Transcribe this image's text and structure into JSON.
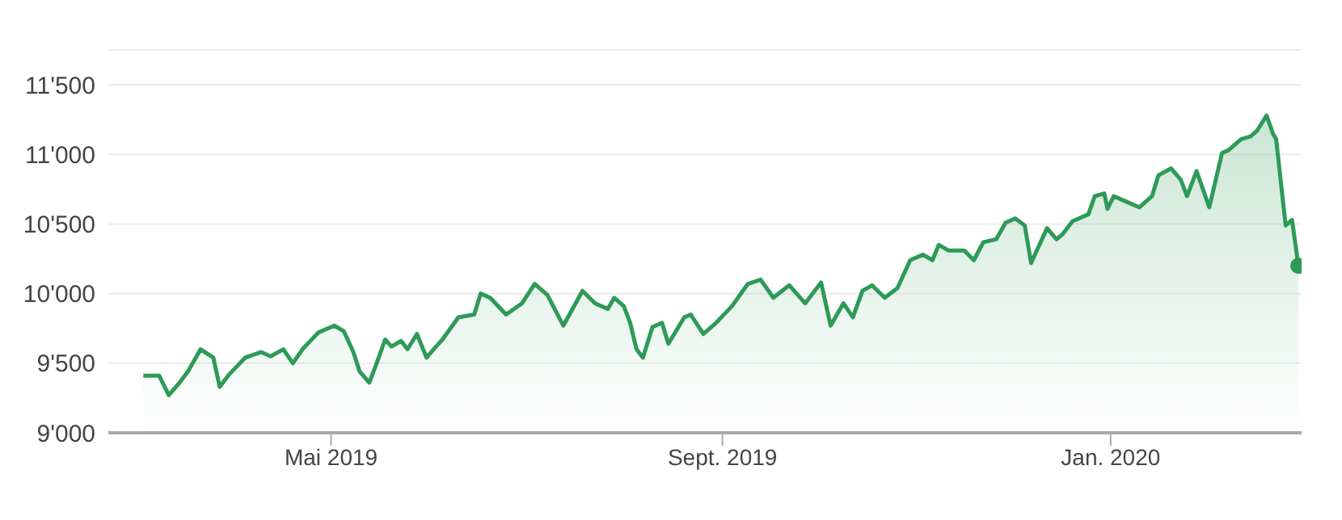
{
  "chart_data": {
    "type": "area",
    "x": [
      "2019-03-03",
      "2019-03-08",
      "2019-03-11",
      "2019-03-14",
      "2019-03-17",
      "2019-03-21",
      "2019-03-25",
      "2019-03-27",
      "2019-03-30",
      "2019-04-04",
      "2019-04-09",
      "2019-04-12",
      "2019-04-16",
      "2019-04-19",
      "2019-04-22",
      "2019-04-27",
      "2019-05-02",
      "2019-05-05",
      "2019-05-08",
      "2019-05-10",
      "2019-05-13",
      "2019-05-15",
      "2019-05-18",
      "2019-05-20",
      "2019-05-23",
      "2019-05-25",
      "2019-05-28",
      "2019-05-31",
      "2019-06-03",
      "2019-06-05",
      "2019-06-10",
      "2019-06-15",
      "2019-06-17",
      "2019-06-20",
      "2019-06-25",
      "2019-06-30",
      "2019-07-04",
      "2019-07-08",
      "2019-07-13",
      "2019-07-19",
      "2019-07-23",
      "2019-07-27",
      "2019-07-29",
      "2019-08-01",
      "2019-08-03",
      "2019-08-05",
      "2019-08-07",
      "2019-08-10",
      "2019-08-13",
      "2019-08-15",
      "2019-08-20",
      "2019-08-22",
      "2019-08-26",
      "2019-08-30",
      "2019-09-04",
      "2019-09-09",
      "2019-09-13",
      "2019-09-17",
      "2019-09-22",
      "2019-09-27",
      "2019-10-02",
      "2019-10-05",
      "2019-10-09",
      "2019-10-12",
      "2019-10-15",
      "2019-10-18",
      "2019-10-22",
      "2019-10-26",
      "2019-10-30",
      "2019-11-03",
      "2019-11-06",
      "2019-11-08",
      "2019-11-11",
      "2019-11-16",
      "2019-11-19",
      "2019-11-22",
      "2019-11-26",
      "2019-11-29",
      "2019-12-02",
      "2019-12-05",
      "2019-12-07",
      "2019-12-12",
      "2019-12-15",
      "2019-12-17",
      "2019-12-20",
      "2019-12-25",
      "2019-12-27",
      "2019-12-30",
      "2019-12-31",
      "2020-01-02",
      "2020-01-06",
      "2020-01-10",
      "2020-01-14",
      "2020-01-16",
      "2020-01-20",
      "2020-01-23",
      "2020-01-25",
      "2020-01-28",
      "2020-02-01",
      "2020-02-05",
      "2020-02-07",
      "2020-02-11",
      "2020-02-14",
      "2020-02-16",
      "2020-02-19",
      "2020-02-21",
      "2020-02-22",
      "2020-02-25",
      "2020-02-27",
      "2020-02-29"
    ],
    "series": [
      {
        "color": "#2e9a57",
        "values": [
          9410,
          9410,
          9270,
          9350,
          9440,
          9600,
          9540,
          9330,
          9420,
          9540,
          9580,
          9550,
          9600,
          9500,
          9600,
          9720,
          9770,
          9730,
          9580,
          9440,
          9360,
          9480,
          9670,
          9620,
          9660,
          9600,
          9710,
          9540,
          9620,
          9670,
          9830,
          9850,
          10000,
          9970,
          9850,
          9930,
          10070,
          9990,
          9770,
          10020,
          9930,
          9890,
          9970,
          9910,
          9790,
          9600,
          9540,
          9760,
          9790,
          9640,
          9830,
          9850,
          9710,
          9790,
          9910,
          10070,
          10100,
          9970,
          10060,
          9930,
          10080,
          9770,
          9930,
          9830,
          10020,
          10060,
          9970,
          10040,
          10240,
          10280,
          10240,
          10350,
          10310,
          10310,
          10240,
          10370,
          10390,
          10510,
          10540,
          10490,
          10220,
          10470,
          10390,
          10430,
          10520,
          10570,
          10700,
          10720,
          10610,
          10700,
          10660,
          10620,
          10700,
          10850,
          10900,
          10820,
          10700,
          10880,
          10620,
          11010,
          11030,
          11110,
          11130,
          11170,
          11280,
          11150,
          11110,
          10490,
          10530,
          10200
        ]
      },
      {
        "type": "scatter",
        "marker": "circle",
        "color": "#2e9a57",
        "x": [
          "2020-02-29"
        ],
        "values": [
          10200
        ]
      }
    ],
    "xlim": [
      "2019-02-20",
      "2020-03-01"
    ],
    "xticks": [
      {
        "value": "2019-05-01",
        "label": "Mai 2019"
      },
      {
        "value": "2019-09-01",
        "label": "Sept. 2019"
      },
      {
        "value": "2020-01-01",
        "label": "Jan. 2020"
      }
    ],
    "ylim": [
      9000,
      11750
    ],
    "yticks": [
      {
        "value": 9000,
        "label": "9'000"
      },
      {
        "value": 9500,
        "label": "9'500"
      },
      {
        "value": 10000,
        "label": "10'000"
      },
      {
        "value": 10500,
        "label": "10'500"
      },
      {
        "value": 11000,
        "label": "11'000"
      },
      {
        "value": 11500,
        "label": "11'500"
      }
    ],
    "grid": "y",
    "marker": "none",
    "line_style": "solid"
  }
}
